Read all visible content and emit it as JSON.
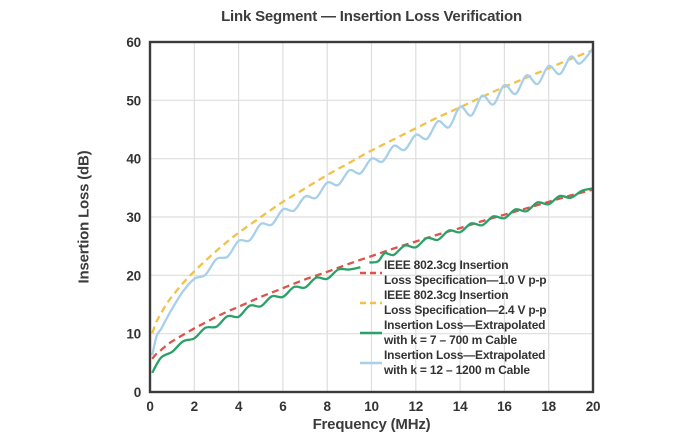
{
  "chart_data": {
    "type": "line",
    "title": "Link Segment — Insertion Loss Verification",
    "xlabel": "Frequency (MHz)",
    "ylabel": "Insertion Loss (dB)",
    "xlim": [
      0,
      20
    ],
    "ylim": [
      0,
      60
    ],
    "xticks": [
      0,
      2,
      4,
      6,
      8,
      10,
      12,
      14,
      16,
      18,
      20
    ],
    "yticks": [
      0,
      10,
      20,
      30,
      40,
      50,
      60
    ],
    "grid": true,
    "legend_position": "inside-lower-right",
    "colors": {
      "frame": "#3b3b3b",
      "grid": "#dedede",
      "text": "#333333",
      "background": "#ffffff"
    },
    "series": [
      {
        "name": "ieee-spec-1v",
        "legend_lines": [
          "IEEE 802.3cg Insertion",
          "Loss Specification—1.0 V p-p"
        ],
        "color": "#dc544b",
        "style": "dashed",
        "z": 2,
        "segments": [
          [
            [
              0.1,
              5.7
            ],
            [
              0.3,
              6.6
            ],
            [
              0.5,
              7.2
            ],
            [
              0.75,
              8.0
            ],
            [
              1,
              8.7
            ],
            [
              1.5,
              9.8
            ],
            [
              2,
              10.9
            ],
            [
              2.5,
              11.9
            ],
            [
              3,
              12.9
            ],
            [
              3.5,
              13.8
            ],
            [
              4,
              14.6
            ],
            [
              5,
              16.3
            ],
            [
              6,
              17.8
            ],
            [
              7,
              19.3
            ],
            [
              8,
              20.6
            ],
            [
              9,
              22.0
            ],
            [
              10,
              23.3
            ],
            [
              11,
              24.6
            ],
            [
              12,
              25.8
            ],
            [
              13,
              27.0
            ],
            [
              14,
              28.1
            ],
            [
              15,
              29.3
            ],
            [
              16,
              30.4
            ],
            [
              17,
              31.5
            ],
            [
              18,
              32.6
            ],
            [
              19,
              33.7
            ],
            [
              20,
              34.7
            ]
          ]
        ]
      },
      {
        "name": "ieee-spec-2v4",
        "legend_lines": [
          "IEEE 802.3cg Insertion",
          "Loss Specification—2.4 V p-p"
        ],
        "color": "#f2c14b",
        "style": "dashed",
        "z": 0,
        "segments": [
          [
            [
              0.1,
              10.1
            ],
            [
              0.3,
              12.1
            ],
            [
              0.5,
              13.5
            ],
            [
              0.75,
              15.1
            ],
            [
              1,
              16.4
            ],
            [
              1.5,
              18.7
            ],
            [
              2,
              20.7
            ],
            [
              2.5,
              22.5
            ],
            [
              3,
              24.2
            ],
            [
              3.5,
              25.8
            ],
            [
              4,
              27.3
            ],
            [
              5,
              30.0
            ],
            [
              6,
              32.6
            ],
            [
              7,
              34.9
            ],
            [
              8,
              37.2
            ],
            [
              9,
              39.3
            ],
            [
              10,
              41.4
            ],
            [
              11,
              43.3
            ],
            [
              12,
              45.2
            ],
            [
              13,
              47.1
            ],
            [
              14,
              48.8
            ],
            [
              15,
              50.6
            ],
            [
              16,
              52.3
            ],
            [
              17,
              53.9
            ],
            [
              18,
              55.5
            ],
            [
              19,
              57.1
            ],
            [
              20,
              58.6
            ]
          ]
        ]
      },
      {
        "name": "extrapolated-700m",
        "legend_lines": [
          "Insertion Loss—Extrapolated",
          "with k = 7 – 700 m Cable"
        ],
        "color": "#2aa168",
        "style": "solid",
        "z": 3,
        "segments": [
          [
            [
              0.1,
              3.3
            ],
            [
              0.5,
              5.9
            ],
            [
              1,
              6.9
            ],
            [
              1.5,
              8.7
            ],
            [
              2,
              9.2
            ],
            [
              2.5,
              11.0
            ],
            [
              3,
              11.2
            ],
            [
              3.5,
              13.0
            ],
            [
              4,
              12.9
            ],
            [
              4.5,
              14.8
            ],
            [
              5,
              14.7
            ],
            [
              5.5,
              16.4
            ],
            [
              6,
              16.3
            ],
            [
              6.5,
              18.0
            ],
            [
              7,
              17.9
            ],
            [
              7.5,
              19.6
            ],
            [
              8,
              19.4
            ],
            [
              8.5,
              21.0
            ],
            [
              9,
              21.0
            ],
            [
              9.5,
              21.4
            ]
          ],
          [
            [
              9.9,
              22.2
            ],
            [
              10.3,
              22.4
            ],
            [
              10.6,
              23.8
            ],
            [
              11,
              23.5
            ],
            [
              11.5,
              25.1
            ],
            [
              12,
              24.8
            ],
            [
              12.5,
              26.4
            ],
            [
              13,
              26.1
            ],
            [
              13.5,
              27.7
            ],
            [
              14,
              27.4
            ],
            [
              14.5,
              28.9
            ],
            [
              15,
              28.6
            ],
            [
              15.5,
              30.1
            ],
            [
              16,
              29.8
            ],
            [
              16.5,
              31.3
            ],
            [
              17,
              31.0
            ],
            [
              17.5,
              32.5
            ],
            [
              18,
              32.2
            ],
            [
              18.5,
              33.6
            ],
            [
              19,
              33.3
            ],
            [
              19.5,
              34.5
            ],
            [
              20,
              34.9
            ]
          ]
        ]
      },
      {
        "name": "extrapolated-1200m",
        "legend_lines": [
          "Insertion Loss—Extrapolated",
          "with k = 12 – 1200 m Cable"
        ],
        "color": "#a8d0e8",
        "style": "solid",
        "z": 1,
        "segments": [
          [
            [
              0.1,
              6.3
            ],
            [
              0.3,
              9.6
            ],
            [
              0.5,
              10.8
            ],
            [
              0.75,
              12.6
            ],
            [
              1,
              14.3
            ],
            [
              1.5,
              17.3
            ],
            [
              2,
              19.4
            ],
            [
              2.5,
              20.1
            ],
            [
              3,
              22.8
            ],
            [
              3.5,
              23.2
            ],
            [
              4,
              25.9
            ],
            [
              4.5,
              26.0
            ],
            [
              5,
              28.8
            ],
            [
              5.5,
              28.7
            ],
            [
              6,
              31.3
            ],
            [
              6.5,
              31.1
            ],
            [
              7,
              33.5
            ],
            [
              7.5,
              33.3
            ],
            [
              8,
              35.9
            ],
            [
              8.5,
              35.5
            ],
            [
              9,
              38.0
            ],
            [
              9.5,
              37.5
            ],
            [
              10,
              40.0
            ],
            [
              10.5,
              39.5
            ],
            [
              11,
              42.2
            ],
            [
              11.5,
              41.5
            ],
            [
              12,
              44.1
            ],
            [
              12.5,
              43.4
            ],
            [
              13,
              46.4
            ],
            [
              13.5,
              45.4
            ],
            [
              14,
              48.9
            ],
            [
              14.5,
              47.4
            ],
            [
              15,
              50.8
            ],
            [
              15.5,
              49.3
            ],
            [
              16,
              52.6
            ],
            [
              16.5,
              51.1
            ],
            [
              17,
              54.3
            ],
            [
              17.5,
              52.8
            ],
            [
              18,
              55.9
            ],
            [
              18.5,
              54.5
            ],
            [
              19,
              57.5
            ],
            [
              19.4,
              56.3
            ],
            [
              20,
              58.9
            ]
          ]
        ]
      }
    ]
  }
}
